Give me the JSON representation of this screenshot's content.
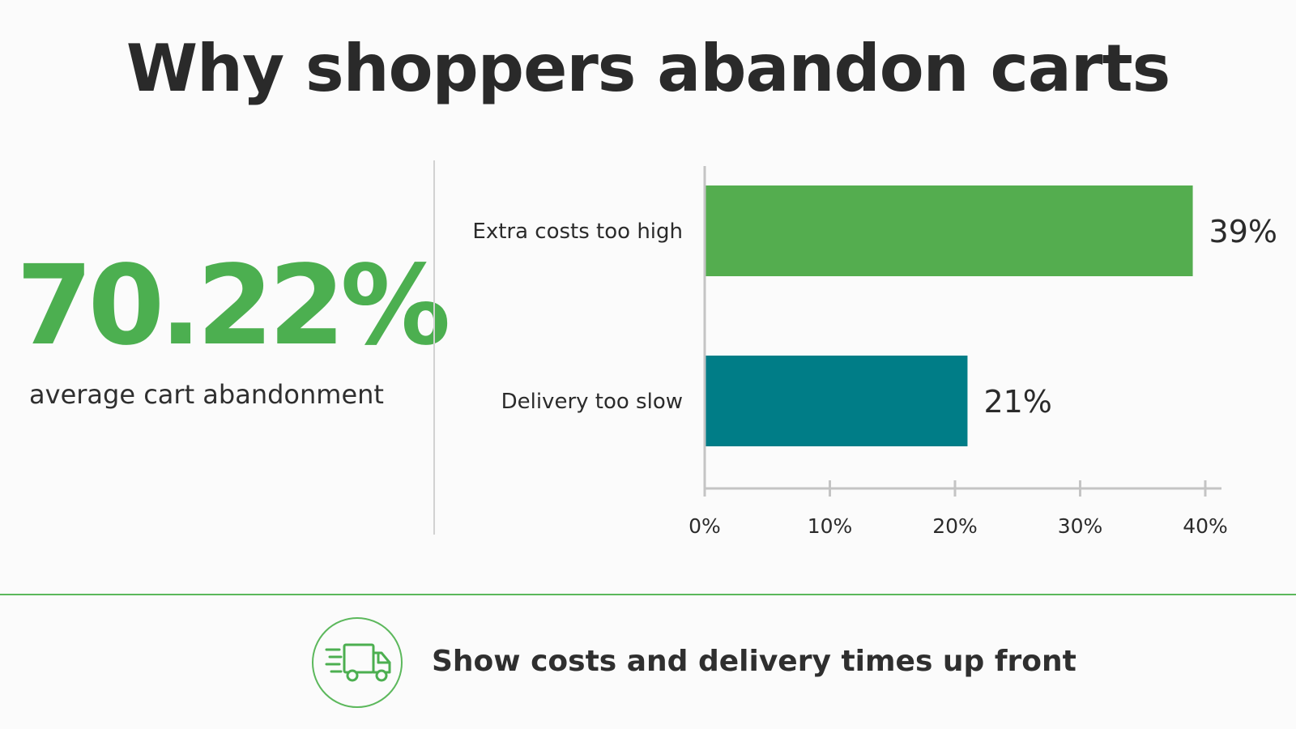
{
  "header": {
    "title": "Why shoppers abandon carts"
  },
  "stat": {
    "value": "70.22%",
    "caption": "average cart abandonment"
  },
  "footer": {
    "text": "Show costs and delivery times up front",
    "icon": "delivery-truck-icon"
  },
  "colors": {
    "accent": "#4caf50",
    "teal": "#007d87",
    "text": "#2b2b2b"
  },
  "chart_data": {
    "type": "bar",
    "orientation": "horizontal",
    "categories": [
      "Extra costs too high",
      "Delivery too slow"
    ],
    "values": [
      39,
      21
    ],
    "data_labels": [
      "39%",
      "21%"
    ],
    "bar_colors": [
      "#54ad4f",
      "#007d87"
    ],
    "xlim": [
      0,
      40
    ],
    "xticks": [
      "0%",
      "10%",
      "20%",
      "30%",
      "40%"
    ],
    "title": "",
    "xlabel": "",
    "ylabel": "",
    "grid": false
  }
}
